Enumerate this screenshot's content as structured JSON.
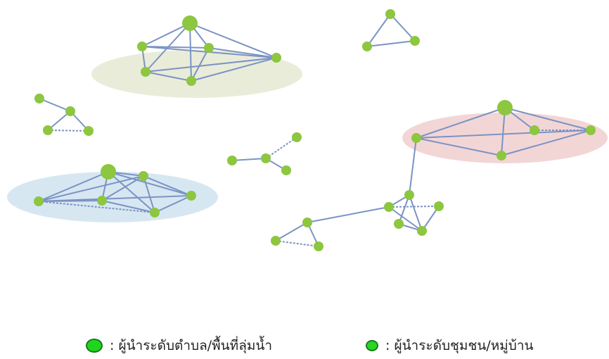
{
  "legend": {
    "large_dot_icon": "large-green-node",
    "small_dot_icon": "small-green-node",
    "large_label": ": ผู้นำระดับตำบล/พื้นที่ลุ่มน้ำ",
    "small_label": ": ผู้นำระดับชุมชน/หมู่บ้าน"
  },
  "colors": {
    "node": "#8dc63f",
    "edge": "#7b93c4",
    "cluster_green": "#e9ecd9",
    "cluster_blue": "#d7e7f2",
    "cluster_red": "#f2d6d6",
    "legend_dot": "#1fd61f"
  },
  "network": {
    "clusters": [
      {
        "name": "top-center-cluster",
        "color": "cluster_green"
      },
      {
        "name": "left-bottom-cluster",
        "color": "cluster_blue"
      },
      {
        "name": "right-cluster",
        "color": "cluster_red"
      }
    ],
    "node_count": 40,
    "leader_node_count": 3
  }
}
